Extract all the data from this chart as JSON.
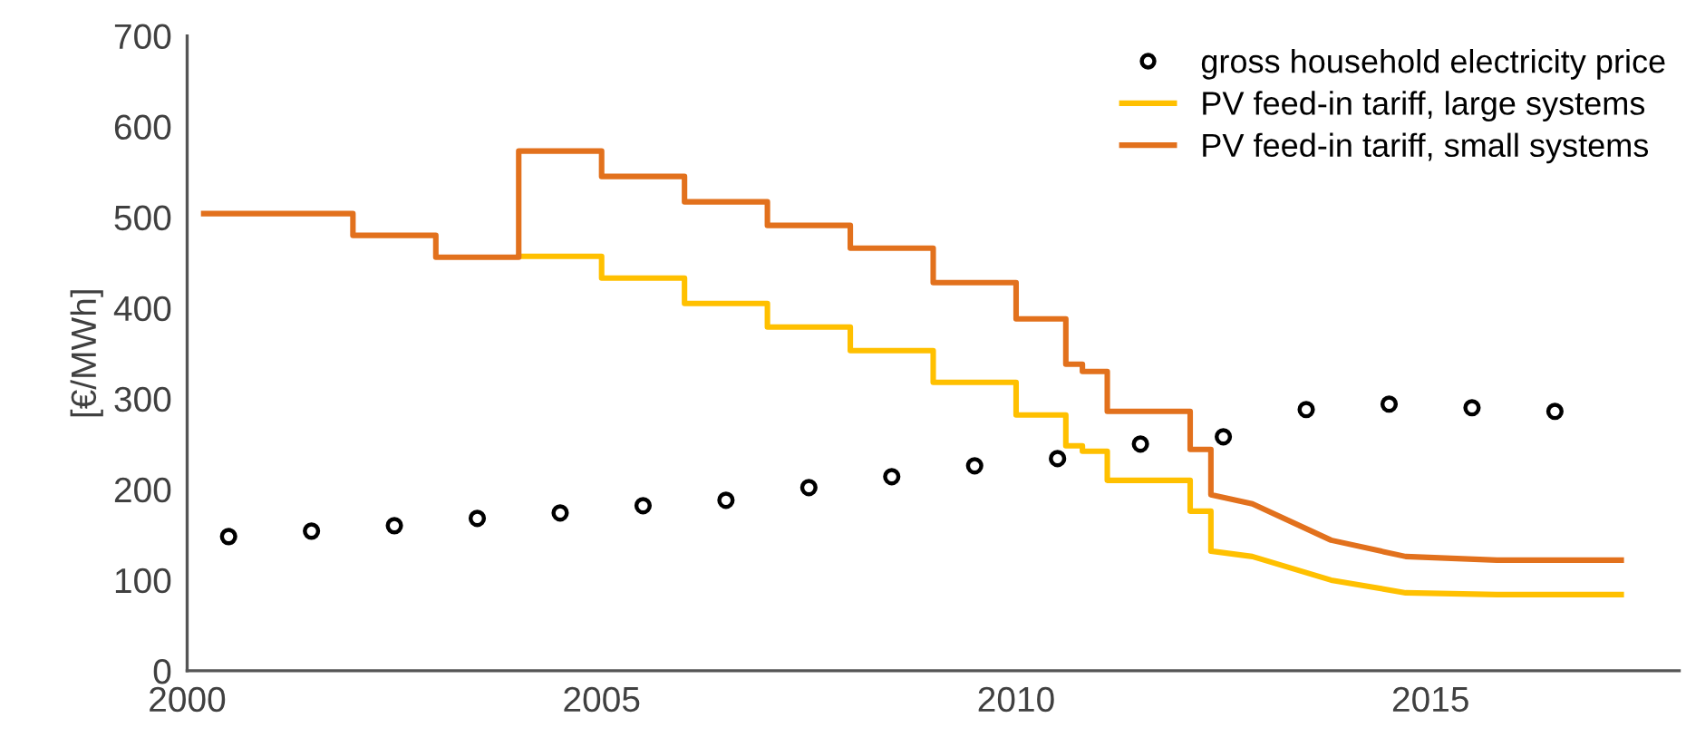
{
  "chart_data": {
    "type": "line",
    "ylabel": "[€/MWh]",
    "xlim": [
      2000,
      2018
    ],
    "xticks": [
      2000,
      2005,
      2010,
      2015
    ],
    "ylim": [
      0,
      700
    ],
    "yticks": [
      0,
      100,
      200,
      300,
      400,
      500,
      600,
      700
    ],
    "grid": false,
    "legend": "top right",
    "series": [
      {
        "name": "gross household electricity price",
        "type": "scatter",
        "marker": "circle",
        "color": "#000000",
        "x": [
          2000.5,
          2001.5,
          2002.5,
          2003.5,
          2004.5,
          2005.5,
          2006.5,
          2007.5,
          2008.5,
          2009.5,
          2010.5,
          2011.5,
          2012.5,
          2013.5,
          2014.5,
          2015.5,
          2016.5
        ],
        "values": [
          148,
          154,
          160,
          168,
          174,
          182,
          188,
          202,
          214,
          226,
          234,
          250,
          258,
          288,
          294,
          290,
          286
        ]
      },
      {
        "name": "PV feed-in tariff, large systems",
        "color": "#ffc000",
        "x": [
          2004,
          2005,
          2005,
          2006,
          2006,
          2007,
          2007,
          2008,
          2008,
          2009,
          2009,
          2010,
          2010,
          2010.6,
          2010.6,
          2010.8,
          2010.8,
          2011.1,
          2011.1,
          2012.1,
          2012.1,
          2012.35,
          2012.35,
          2012.85,
          2013.8,
          2014.7,
          2015.8,
          2017.3
        ],
        "values": [
          457,
          457,
          433,
          433,
          405,
          405,
          379,
          379,
          353,
          353,
          318,
          318,
          282,
          282,
          248,
          248,
          242,
          242,
          210,
          210,
          176,
          176,
          132,
          126,
          100,
          86,
          84,
          84
        ]
      },
      {
        "name": "PV feed-in tariff, small systems",
        "color": "#e2711d",
        "x": [
          2000.2,
          2002,
          2002,
          2003,
          2003,
          2004,
          2004,
          2005,
          2005,
          2006,
          2006,
          2007,
          2007,
          2008,
          2008,
          2009,
          2009,
          2010,
          2010,
          2010.6,
          2010.6,
          2010.8,
          2010.8,
          2011.1,
          2011.1,
          2012.1,
          2012.1,
          2012.35,
          2012.35,
          2012.85,
          2013.8,
          2014.7,
          2015.8,
          2017.3
        ],
        "values": [
          504,
          504,
          480,
          480,
          456,
          456,
          573,
          573,
          545,
          545,
          517,
          517,
          491,
          491,
          466,
          466,
          428,
          428,
          388,
          388,
          338,
          338,
          330,
          330,
          286,
          286,
          244,
          244,
          194,
          184,
          144,
          126,
          122,
          122
        ]
      }
    ]
  }
}
